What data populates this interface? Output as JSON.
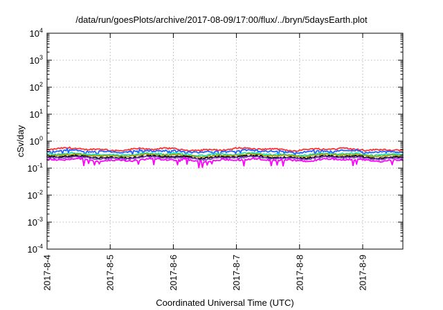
{
  "chart_data": {
    "type": "line",
    "title": "/data/run/goesPlots/archive/2017-08-09/17:00/flux/../bryn/5daysEarth.plot",
    "xlabel": "Coordinated Universal Time (UTC)",
    "ylabel": "cSv/day",
    "yscale": "log",
    "ylim": [
      0.0001,
      10000
    ],
    "xlim": [
      "2017-08-04",
      "2017-08-09 17:00"
    ],
    "x_ticks": [
      "2017-8-4",
      "2017-8-5",
      "2017-8-6",
      "2017-8-7",
      "2017-8-8",
      "2017-8-9"
    ],
    "y_ticks": [
      {
        "base": "10",
        "exp": "-4"
      },
      {
        "base": "10",
        "exp": "-3"
      },
      {
        "base": "10",
        "exp": "-2"
      },
      {
        "base": "10",
        "exp": "-1"
      },
      {
        "base": "10",
        "exp": "0"
      },
      {
        "base": "10",
        "exp": "1"
      },
      {
        "base": "10",
        "exp": "2"
      },
      {
        "base": "10",
        "exp": "3"
      },
      {
        "base": "10",
        "exp": "4"
      }
    ],
    "grid": true,
    "legend": "none",
    "series": [
      {
        "color": "#ff3030",
        "approx_level": 0.5,
        "dip_amplitude": 0.1
      },
      {
        "color": "#2060ff",
        "approx_level": 0.42,
        "dip_amplitude": 0.3
      },
      {
        "color": "#20e0c0",
        "approx_level": 0.33,
        "dip_amplitude": 0.1
      },
      {
        "color": "#a0a000",
        "approx_level": 0.3,
        "dip_amplitude": 0.08
      },
      {
        "color": "#000000",
        "approx_level": 0.26,
        "dip_amplitude": 0.06
      },
      {
        "color": "#8040c0",
        "approx_level": 0.24,
        "dip_amplitude": 0.06
      },
      {
        "color": "#ff00ff",
        "approx_level": 0.2,
        "dip_amplitude": 0.45
      }
    ]
  }
}
